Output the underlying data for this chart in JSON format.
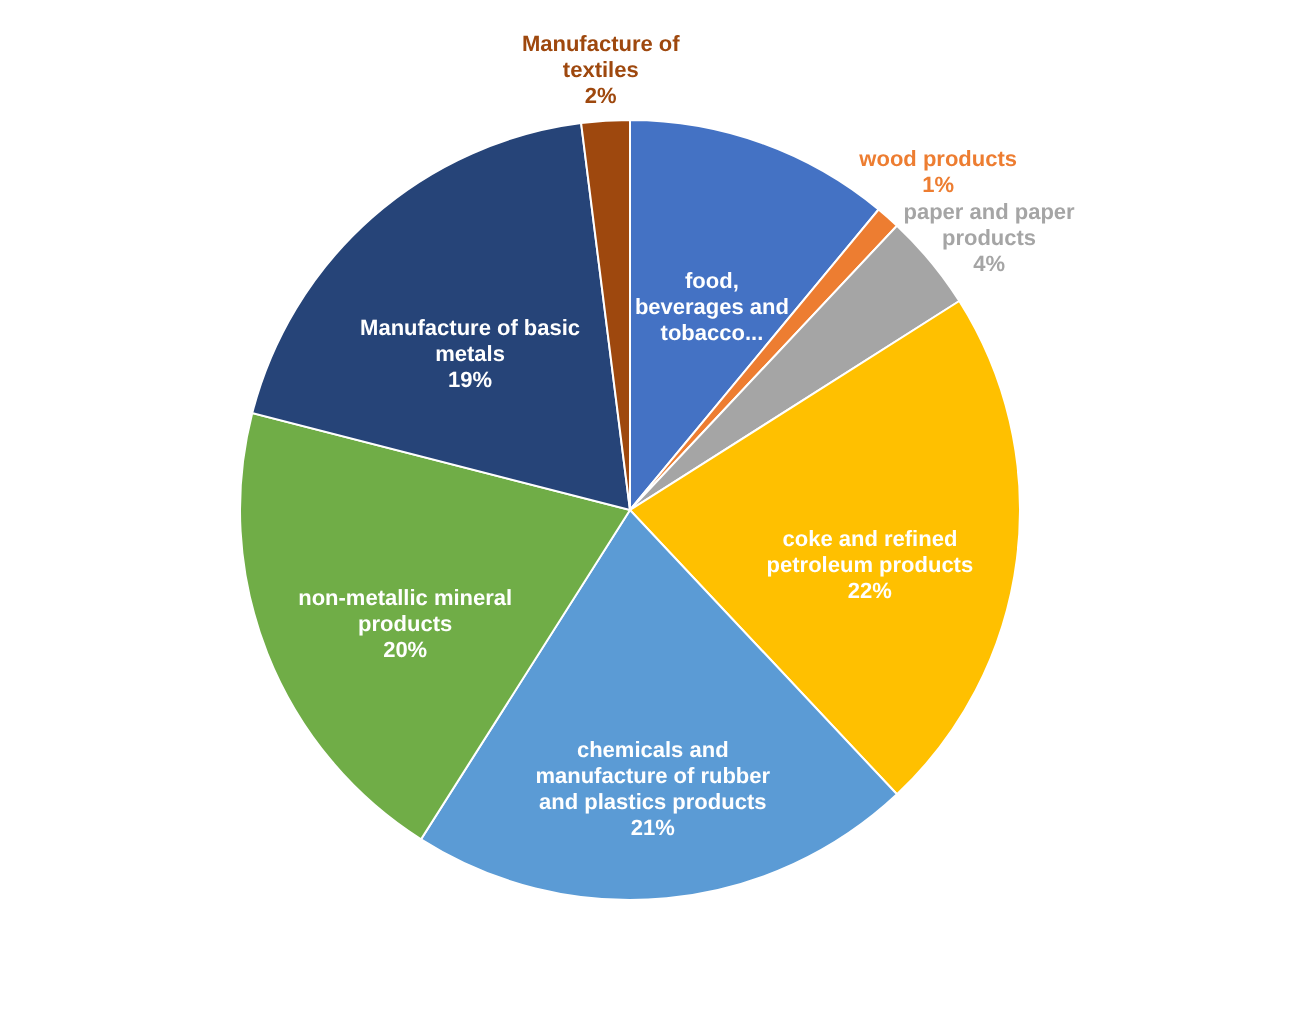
{
  "chart_data": {
    "type": "pie",
    "categories": [
      "food, beverages and tobacco...",
      "wood products",
      "paper and paper products",
      "coke and refined petroleum products",
      "chemicals and manufacture of rubber and plastics products",
      "non-metallic mineral products",
      "Manufacture of basic metals",
      "Manufacture of textiles"
    ],
    "values": [
      11,
      1,
      4,
      22,
      21,
      20,
      19,
      2
    ],
    "value_labels": [
      null,
      "1%",
      "4%",
      "22%",
      "21%",
      "20%",
      "19%",
      "2%"
    ],
    "colors": [
      "#4472c4",
      "#ed7d31",
      "#a5a5a5",
      "#ffc000",
      "#5b9bd5",
      "#70ad47",
      "#264478",
      "#9e480e"
    ]
  }
}
